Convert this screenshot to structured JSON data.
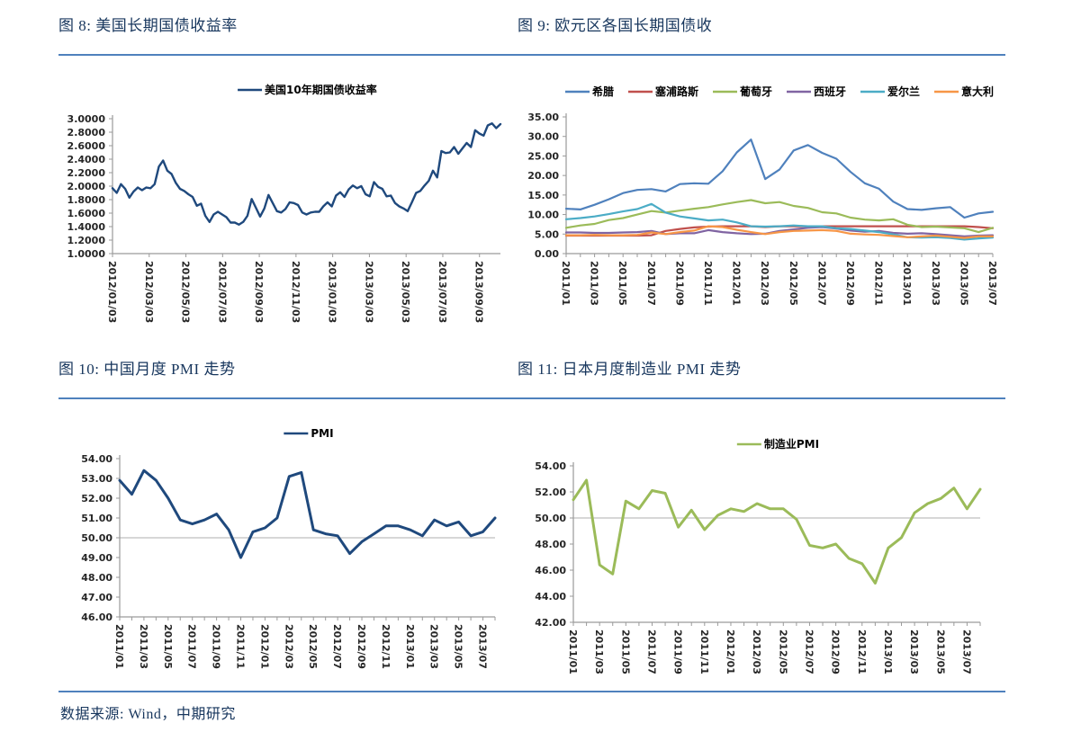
{
  "page": {
    "source_note": "数据来源: Wind，中期研究"
  },
  "chart_data": [
    {
      "type": "line",
      "figure_label": "图 8: 美国长期国债收益率",
      "legend_position": "top",
      "grid": false,
      "ylim": [
        1.0,
        3.0
      ],
      "ytick_step": 0.2,
      "ytick_decimals": 4,
      "x_labels": [
        "2012/01/03",
        "2012/03/03",
        "2012/05/03",
        "2012/07/03",
        "2012/09/03",
        "2012/11/03",
        "2013/01/03",
        "2013/03/03",
        "2013/05/03",
        "2013/07/03",
        "2013/09/03"
      ],
      "series": [
        {
          "name": "美国10年期国债收益率",
          "color": "#1F497D",
          "values": [
            1.97,
            1.9,
            2.03,
            1.96,
            1.83,
            1.92,
            1.98,
            1.94,
            1.98,
            1.97,
            2.03,
            2.29,
            2.38,
            2.23,
            2.18,
            2.05,
            1.96,
            1.93,
            1.88,
            1.84,
            1.71,
            1.74,
            1.56,
            1.47,
            1.58,
            1.62,
            1.58,
            1.54,
            1.46,
            1.46,
            1.43,
            1.47,
            1.56,
            1.81,
            1.68,
            1.55,
            1.67,
            1.87,
            1.75,
            1.63,
            1.61,
            1.66,
            1.76,
            1.75,
            1.72,
            1.61,
            1.58,
            1.61,
            1.62,
            1.62,
            1.7,
            1.76,
            1.7,
            1.86,
            1.91,
            1.84,
            1.95,
            2.01,
            1.97,
            2.0,
            1.88,
            1.85,
            2.06,
            1.99,
            1.96,
            1.85,
            1.86,
            1.75,
            1.7,
            1.67,
            1.63,
            1.76,
            1.9,
            1.93,
            2.01,
            2.08,
            2.23,
            2.13,
            2.52,
            2.49,
            2.5,
            2.58,
            2.48,
            2.56,
            2.64,
            2.58,
            2.83,
            2.78,
            2.75,
            2.9,
            2.93,
            2.86,
            2.92
          ]
        }
      ]
    },
    {
      "type": "line",
      "figure_label": "图 9: 欧元区各国长期国债收",
      "legend_position": "top",
      "grid": false,
      "ylim": [
        0,
        35
      ],
      "ytick_step": 5,
      "ytick_decimals": 2,
      "x_labels": [
        "2011/01",
        "2011/03",
        "2011/05",
        "2011/07",
        "2011/09",
        "2011/11",
        "2012/01",
        "2012/03",
        "2012/05",
        "2012/07",
        "2012/09",
        "2012/11",
        "2013/01",
        "2013/03",
        "2013/05",
        "2013/07"
      ],
      "x_label_index_step": 2,
      "series": [
        {
          "name": "希腊",
          "color": "#4F81BD",
          "values": [
            11.5,
            11.3,
            12.5,
            13.9,
            15.5,
            16.3,
            16.5,
            15.9,
            17.8,
            18.0,
            17.9,
            21.1,
            25.9,
            29.2,
            19.1,
            21.5,
            26.4,
            27.8,
            25.8,
            24.3,
            20.9,
            18.0,
            16.6,
            13.3,
            11.4,
            11.2,
            11.6,
            11.9,
            9.2,
            10.3,
            10.7
          ]
        },
        {
          "name": "塞浦路斯",
          "color": "#C0504D",
          "values": [
            4.6,
            4.6,
            4.6,
            4.6,
            4.6,
            4.6,
            4.7,
            5.8,
            6.3,
            6.7,
            6.9,
            7.0,
            7.0,
            7.0,
            6.8,
            7.0,
            7.0,
            7.0,
            7.0,
            7.0,
            7.0,
            7.0,
            7.0,
            7.0,
            7.0,
            7.0,
            7.0,
            7.0,
            7.0,
            6.8,
            6.5
          ]
        },
        {
          "name": "葡萄牙",
          "color": "#9BBB59",
          "values": [
            6.6,
            7.2,
            7.6,
            8.6,
            9.1,
            10.0,
            10.9,
            10.5,
            11.0,
            11.5,
            11.9,
            12.6,
            13.2,
            13.7,
            12.9,
            13.2,
            12.2,
            11.7,
            10.6,
            10.3,
            9.2,
            8.7,
            8.5,
            8.8,
            7.4,
            6.8,
            6.9,
            6.7,
            6.5,
            5.5,
            6.6
          ]
        },
        {
          "name": "西班牙",
          "color": "#8064A2",
          "values": [
            5.4,
            5.4,
            5.3,
            5.3,
            5.4,
            5.5,
            5.8,
            5.0,
            5.2,
            5.2,
            6.0,
            5.5,
            5.2,
            5.0,
            5.1,
            5.8,
            6.2,
            6.6,
            6.8,
            6.4,
            5.9,
            5.6,
            5.8,
            5.3,
            5.1,
            5.2,
            5.0,
            4.7,
            4.4,
            4.6,
            4.7
          ]
        },
        {
          "name": "爱尔兰",
          "color": "#4BACC6",
          "values": [
            8.8,
            9.1,
            9.5,
            10.1,
            10.8,
            11.4,
            12.7,
            10.5,
            9.5,
            9.0,
            8.5,
            8.7,
            8.0,
            7.0,
            6.9,
            7.0,
            7.2,
            7.0,
            7.0,
            6.5,
            6.3,
            5.9,
            5.5,
            4.9,
            4.2,
            4.1,
            4.2,
            4.0,
            3.6,
            3.9,
            4.1
          ]
        },
        {
          "name": "意大利",
          "color": "#F79646",
          "values": [
            4.7,
            4.7,
            4.8,
            4.7,
            4.7,
            4.8,
            5.4,
            5.0,
            5.5,
            5.9,
            7.0,
            6.8,
            6.1,
            5.5,
            5.0,
            5.5,
            5.8,
            5.9,
            6.0,
            5.8,
            5.1,
            4.9,
            4.8,
            4.5,
            4.2,
            4.4,
            4.6,
            4.3,
            4.0,
            4.4,
            4.4
          ]
        }
      ]
    },
    {
      "type": "line",
      "figure_label": "图 10: 中国月度 PMI 走势",
      "legend_position": "top",
      "grid": false,
      "gridline_at": 50,
      "ylim": [
        46,
        54
      ],
      "ytick_step": 1,
      "ytick_decimals": 2,
      "x_labels": [
        "2011/01",
        "2011/03",
        "2011/05",
        "2011/07",
        "2011/09",
        "2011/11",
        "2012/01",
        "2012/03",
        "2012/05",
        "2012/07",
        "2012/09",
        "2012/11",
        "2013/01",
        "2013/03",
        "2013/05",
        "2013/07"
      ],
      "x_label_index_step": 2,
      "series": [
        {
          "name": "PMI",
          "color": "#1F497D",
          "values": [
            52.9,
            52.2,
            53.4,
            52.9,
            52.0,
            50.9,
            50.7,
            50.9,
            51.2,
            50.4,
            49.0,
            50.3,
            50.5,
            51.0,
            53.1,
            53.3,
            50.4,
            50.2,
            50.1,
            49.2,
            49.8,
            50.2,
            50.6,
            50.6,
            50.4,
            50.1,
            50.9,
            50.6,
            50.8,
            50.1,
            50.3,
            51.0
          ]
        }
      ]
    },
    {
      "type": "line",
      "figure_label": "图 11: 日本月度制造业 PMI 走势",
      "legend_position": "top",
      "grid": false,
      "gridline_at": 50,
      "ylim": [
        42,
        54
      ],
      "ytick_step": 2,
      "ytick_decimals": 2,
      "x_labels": [
        "2011/01",
        "2011/03",
        "2011/05",
        "2011/07",
        "2011/09",
        "2011/11",
        "2012/01",
        "2012/03",
        "2012/05",
        "2012/07",
        "2012/09",
        "2012/11",
        "2013/01",
        "2013/03",
        "2013/05",
        "2013/07"
      ],
      "x_label_index_step": 2,
      "series": [
        {
          "name": "制造业PMI",
          "color": "#9BBB59",
          "values": [
            51.4,
            52.9,
            46.4,
            45.7,
            51.3,
            50.7,
            52.1,
            51.9,
            49.3,
            50.6,
            49.1,
            50.2,
            50.7,
            50.5,
            51.1,
            50.7,
            50.7,
            49.9,
            47.9,
            47.7,
            48.0,
            46.9,
            46.5,
            45.0,
            47.7,
            48.5,
            50.4,
            51.1,
            51.5,
            52.3,
            50.7,
            52.2
          ]
        }
      ]
    }
  ]
}
